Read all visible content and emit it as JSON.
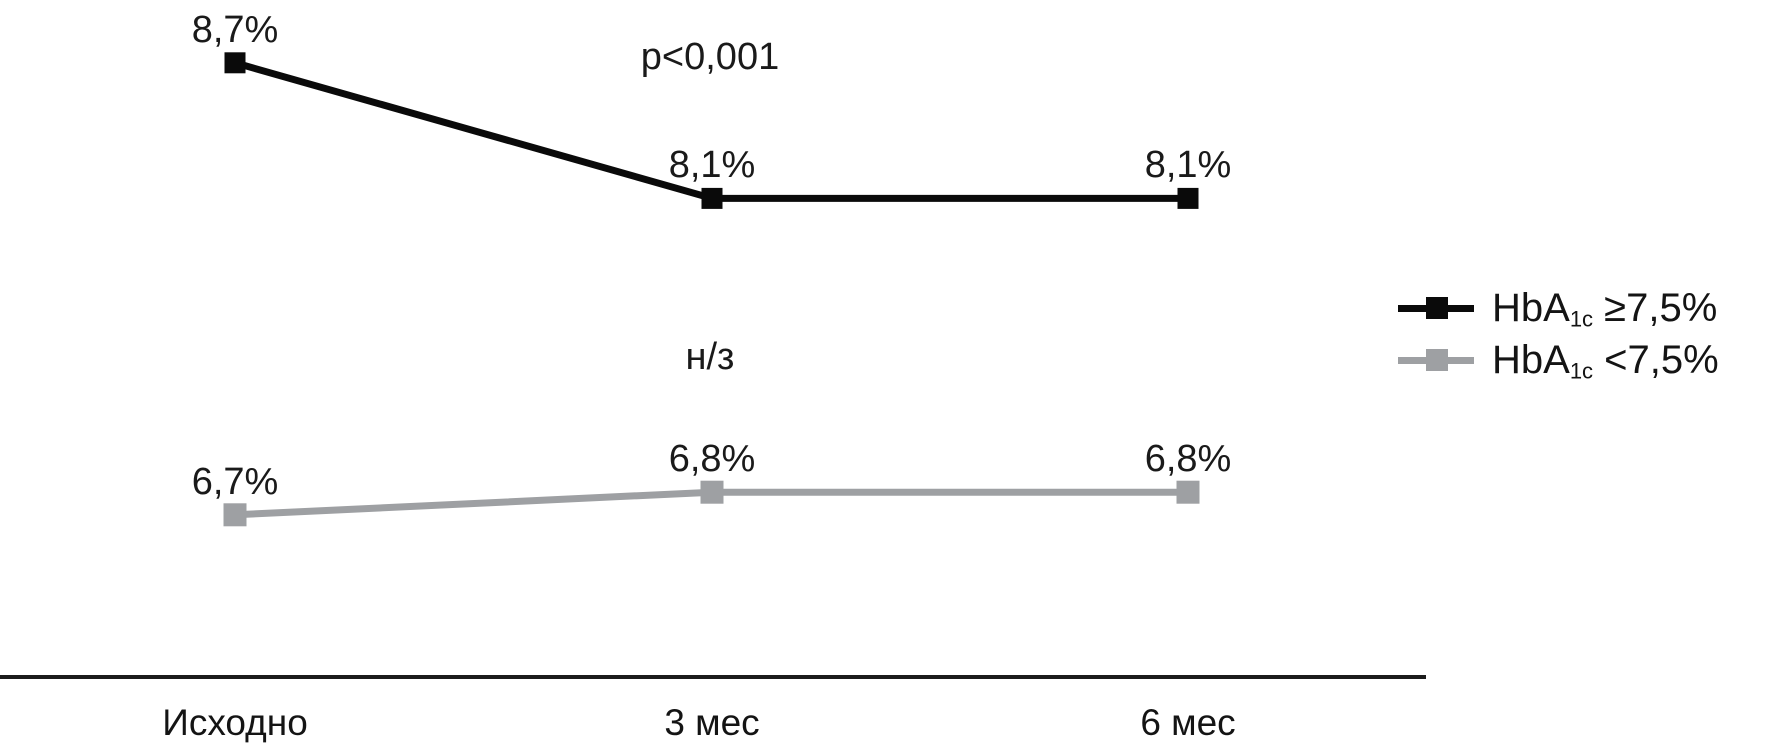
{
  "chart_data": {
    "type": "line",
    "title": "",
    "xlabel": "",
    "ylabel": "",
    "categories": [
      "Исходно",
      "3 мес",
      "6 мес"
    ],
    "series": [
      {
        "name": "HbA1c ≥7,5%",
        "values": [
          8.7,
          8.1,
          8.1
        ],
        "labels": [
          "8,7%",
          "8,1%",
          "8,1%"
        ],
        "color": "#0a0a0a",
        "marker": "square",
        "significance": "p<0,001"
      },
      {
        "name": "HbA1c <7,5%",
        "values": [
          6.7,
          6.8,
          6.8
        ],
        "labels": [
          "6,7%",
          "6,8%",
          "6,8%"
        ],
        "color": "#9ea0a3",
        "marker": "square",
        "significance": "н/з"
      }
    ],
    "ylim": [
      6.0,
      9.0
    ],
    "grid": false,
    "legend_position": "right",
    "annotations": [
      "p<0,001",
      "н/з"
    ]
  },
  "annotations": {
    "top_significance": "p<0,001",
    "bottom_significance": "н/з"
  },
  "legend": {
    "items": [
      {
        "prefix": "HbA",
        "sub": "1c",
        "suffix": " ≥7,5%",
        "color": "#0a0a0a"
      },
      {
        "prefix": "HbA",
        "sub": "1c",
        "suffix": " <7,5%",
        "color": "#9ea0a3"
      }
    ]
  },
  "x_axis": {
    "labels": [
      "Исходно",
      "3 мес",
      "6 мес"
    ]
  },
  "colors": {
    "axis": "#1c1c1c",
    "text": "#1a1a1a",
    "background": "#ffffff"
  }
}
